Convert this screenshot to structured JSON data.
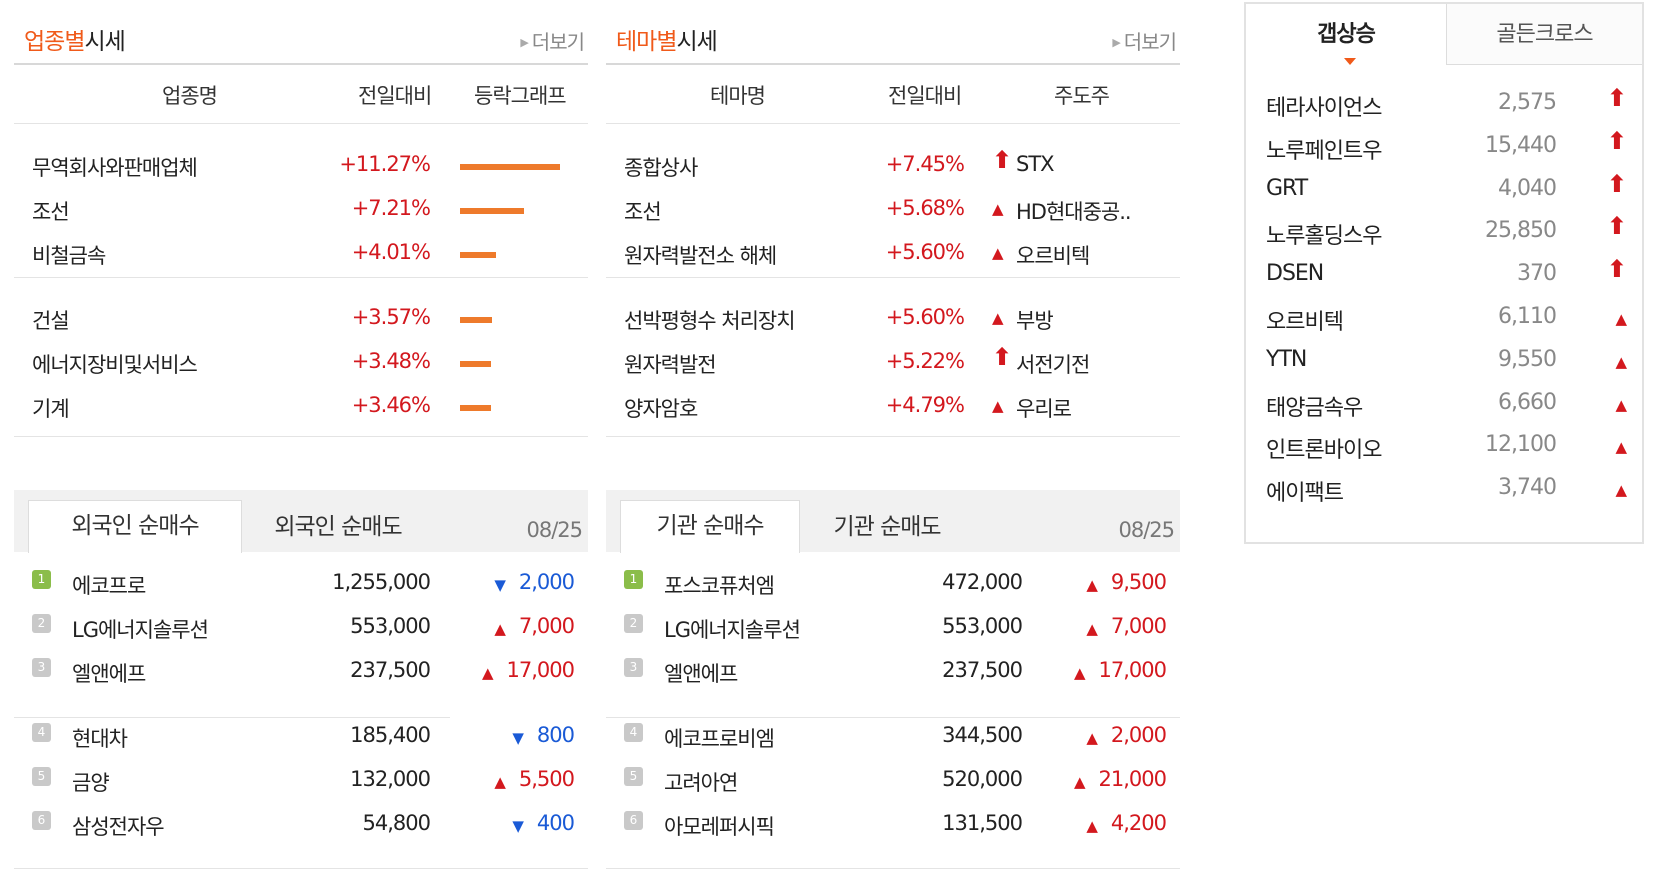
{
  "industry": {
    "title_accent": "업종별",
    "title_rest": "시세",
    "more": "더보기",
    "headers": [
      "업종명",
      "전일대비",
      "등락그래프"
    ],
    "rows": [
      {
        "name": "무역회사와판매업체",
        "change": "+11.27%",
        "pct": 11.27
      },
      {
        "name": "조선",
        "change": "+7.21%",
        "pct": 7.21
      },
      {
        "name": "비철금속",
        "change": "+4.01%",
        "pct": 4.01
      },
      {
        "name": "건설",
        "change": "+3.57%",
        "pct": 3.57
      },
      {
        "name": "에너지장비및서비스",
        "change": "+3.48%",
        "pct": 3.48
      },
      {
        "name": "기계",
        "change": "+3.46%",
        "pct": 3.46
      }
    ]
  },
  "theme": {
    "title_accent": "테마별",
    "title_rest": "시세",
    "more": "더보기",
    "headers": [
      "테마명",
      "전일대비",
      "주도주"
    ],
    "rows": [
      {
        "name": "종합상사",
        "change": "+7.45%",
        "icon": "up-arrow-icon",
        "leader": "STX"
      },
      {
        "name": "조선",
        "change": "+5.68%",
        "icon": "up-triangle-icon",
        "leader": "HD현대중공.."
      },
      {
        "name": "원자력발전소 해체",
        "change": "+5.60%",
        "icon": "up-triangle-icon",
        "leader": "오르비텍"
      },
      {
        "name": "선박평형수 처리장치",
        "change": "+5.60%",
        "icon": "up-triangle-icon",
        "leader": "부방"
      },
      {
        "name": "원자력발전",
        "change": "+5.22%",
        "icon": "up-arrow-icon",
        "leader": "서전기전"
      },
      {
        "name": "양자암호",
        "change": "+4.79%",
        "icon": "up-triangle-icon",
        "leader": "우리로"
      }
    ]
  },
  "foreign": {
    "tabs": [
      "외국인 순매수",
      "외국인 순매도"
    ],
    "date": "08/25",
    "rows": [
      {
        "rank": "1",
        "name": "에코프로",
        "qty": "1,255,000",
        "dir": "down",
        "diff": "2,000"
      },
      {
        "rank": "2",
        "name": "LG에너지솔루션",
        "qty": "553,000",
        "dir": "up",
        "diff": "7,000"
      },
      {
        "rank": "3",
        "name": "엘앤에프",
        "qty": "237,500",
        "dir": "up",
        "diff": "17,000"
      },
      {
        "rank": "4",
        "name": "현대차",
        "qty": "185,400",
        "dir": "down",
        "diff": "800"
      },
      {
        "rank": "5",
        "name": "금양",
        "qty": "132,000",
        "dir": "up",
        "diff": "5,500"
      },
      {
        "rank": "6",
        "name": "삼성전자우",
        "qty": "54,800",
        "dir": "down",
        "diff": "400"
      }
    ]
  },
  "institution": {
    "tabs": [
      "기관 순매수",
      "기관 순매도"
    ],
    "date": "08/25",
    "rows": [
      {
        "rank": "1",
        "name": "포스코퓨처엠",
        "qty": "472,000",
        "dir": "up",
        "diff": "9,500"
      },
      {
        "rank": "2",
        "name": "LG에너지솔루션",
        "qty": "553,000",
        "dir": "up",
        "diff": "7,000"
      },
      {
        "rank": "3",
        "name": "엘앤에프",
        "qty": "237,500",
        "dir": "up",
        "diff": "17,000"
      },
      {
        "rank": "4",
        "name": "에코프로비엠",
        "qty": "344,500",
        "dir": "up",
        "diff": "2,000"
      },
      {
        "rank": "5",
        "name": "고려아연",
        "qty": "520,000",
        "dir": "up",
        "diff": "21,000"
      },
      {
        "rank": "6",
        "name": "아모레퍼시픽",
        "qty": "131,500",
        "dir": "up",
        "diff": "4,200"
      }
    ]
  },
  "gap": {
    "tabs": [
      "갭상승",
      "골든크로스"
    ],
    "rows": [
      {
        "name": "테라사이언스",
        "price": "2,575",
        "icon": "up-arrow-icon"
      },
      {
        "name": "노루페인트우",
        "price": "15,440",
        "icon": "up-arrow-icon"
      },
      {
        "name": "GRT",
        "price": "4,040",
        "icon": "up-arrow-icon"
      },
      {
        "name": "노루홀딩스우",
        "price": "25,850",
        "icon": "up-arrow-icon"
      },
      {
        "name": "DSEN",
        "price": "370",
        "icon": "up-arrow-icon"
      },
      {
        "name": "오르비텍",
        "price": "6,110",
        "icon": "up-triangle-icon"
      },
      {
        "name": "YTN",
        "price": "9,550",
        "icon": "up-triangle-icon"
      },
      {
        "name": "태양금속우",
        "price": "6,660",
        "icon": "up-triangle-icon"
      },
      {
        "name": "인트론바이오",
        "price": "12,100",
        "icon": "up-triangle-icon"
      },
      {
        "name": "에이팩트",
        "price": "3,740",
        "icon": "up-triangle-icon"
      }
    ]
  },
  "colors": {
    "accent": "#f05a1a",
    "up": "#d3181e",
    "down": "#1a5ad6",
    "bar": "#ee7a2b"
  }
}
